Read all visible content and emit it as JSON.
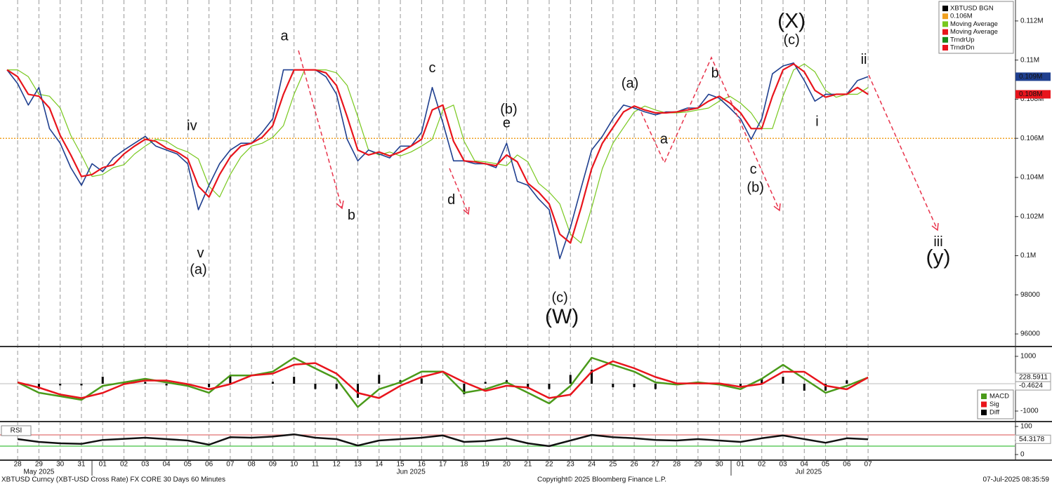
{
  "chart_data": [
    {
      "type": "line",
      "xlim": [
        -0.83,
        46.9
      ],
      "ylim": [
        95393,
        113071
      ],
      "xticks": [
        {
          "value": 0,
          "label": "28"
        },
        {
          "value": 1,
          "label": "29"
        },
        {
          "value": 2,
          "label": "30"
        },
        {
          "value": 3,
          "label": "31"
        },
        {
          "value": 4,
          "label": "01"
        },
        {
          "value": 5,
          "label": "02"
        },
        {
          "value": 6,
          "label": "03"
        },
        {
          "value": 7,
          "label": "04"
        },
        {
          "value": 8,
          "label": "05"
        },
        {
          "value": 9,
          "label": "06"
        },
        {
          "value": 10,
          "label": "07"
        },
        {
          "value": 11,
          "label": "08"
        },
        {
          "value": 12,
          "label": "09"
        },
        {
          "value": 13,
          "label": "10"
        },
        {
          "value": 14,
          "label": "11"
        },
        {
          "value": 15,
          "label": "12"
        },
        {
          "value": 16,
          "label": "13"
        },
        {
          "value": 17,
          "label": "14"
        },
        {
          "value": 18,
          "label": "15"
        },
        {
          "value": 19,
          "label": "16"
        },
        {
          "value": 20,
          "label": "17"
        },
        {
          "value": 21,
          "label": "18"
        },
        {
          "value": 22,
          "label": "19"
        },
        {
          "value": 23,
          "label": "20"
        },
        {
          "value": 24,
          "label": "21"
        },
        {
          "value": 25,
          "label": "22"
        },
        {
          "value": 26,
          "label": "23"
        },
        {
          "value": 27,
          "label": "24"
        },
        {
          "value": 28,
          "label": "25"
        },
        {
          "value": 29,
          "label": "26"
        },
        {
          "value": 30,
          "label": "27"
        },
        {
          "value": 31,
          "label": "28"
        },
        {
          "value": 32,
          "label": "29"
        },
        {
          "value": 33,
          "label": "30"
        },
        {
          "value": 34,
          "label": "01"
        },
        {
          "value": 35,
          "label": "02"
        },
        {
          "value": 36,
          "label": "03"
        },
        {
          "value": 37,
          "label": "04"
        },
        {
          "value": 38,
          "label": "05"
        },
        {
          "value": 39,
          "label": "06"
        },
        {
          "value": 40,
          "label": "07"
        }
      ],
      "month_labels": [
        {
          "value": 1,
          "label": "May 2025"
        },
        {
          "value": 18.5,
          "label": "Jun 2025"
        },
        {
          "value": 37.2,
          "label": "Jul 2025"
        }
      ],
      "yticks": [
        96000,
        98000,
        {
          "value": 100000,
          "label": "0.1M"
        },
        {
          "value": 102000,
          "label": "0.102M"
        },
        {
          "value": 104000,
          "label": "0.104M"
        },
        {
          "value": 106000,
          "label": "0.106M"
        },
        {
          "value": 108000,
          "label": "0.108M"
        },
        {
          "value": 110000,
          "label": "0.11M"
        },
        {
          "value": 112000,
          "label": "0.112M"
        }
      ],
      "x": [
        -0.5,
        0,
        0.5,
        1,
        1.5,
        2,
        2.5,
        3,
        3.5,
        4,
        4.5,
        5,
        5.5,
        6,
        6.5,
        7,
        7.5,
        8,
        8.5,
        9,
        9.5,
        10,
        10.5,
        11,
        11.5,
        12,
        12.5,
        13,
        13.5,
        14,
        14.5,
        15,
        15.5,
        16,
        16.5,
        17,
        17.5,
        18,
        18.5,
        19,
        19.5,
        20,
        20.5,
        21,
        21.5,
        22,
        22.5,
        23,
        23.5,
        24,
        24.5,
        25,
        25.5,
        26,
        26.5,
        27,
        27.5,
        28,
        28.5,
        29,
        29.5,
        30,
        30.5,
        31,
        31.5,
        32,
        32.5,
        33,
        33.5,
        34,
        34.5,
        35,
        35.5,
        36,
        36.5,
        37,
        37.5,
        38,
        38.5,
        39,
        39.5,
        40
      ],
      "series": [
        {
          "name": "XBTUSD BGN",
          "color": "#1f3f8f",
          "last_label": "0.109M",
          "values": [
            109500,
            108800,
            107700,
            108600,
            106500,
            105750,
            104500,
            103600,
            104700,
            104300,
            105000,
            105400,
            105750,
            106100,
            105600,
            105400,
            105200,
            104700,
            102350,
            103600,
            104700,
            105400,
            105750,
            105750,
            106300,
            107000,
            109500,
            109500,
            109500,
            109500,
            109150,
            108250,
            105950,
            104850,
            105400,
            105200,
            105000,
            105600,
            105600,
            106300,
            108600,
            106800,
            104850,
            104850,
            104700,
            104700,
            104500,
            105750,
            103800,
            103600,
            102900,
            102350,
            99850,
            101450,
            103450,
            105400,
            106100,
            107000,
            107700,
            107550,
            107350,
            107200,
            107350,
            107350,
            107550,
            107550,
            108250,
            108050,
            107550,
            107000,
            105950,
            107000,
            109300,
            109700,
            109850,
            108950,
            107900,
            108250,
            108250,
            108250,
            108950,
            109150
          ]
        },
        {
          "name": "Moving Average",
          "color": "#e8141c",
          "last_label": "0.108M",
          "values": [
            109500,
            109150,
            108250,
            108150,
            107550,
            106150,
            105150,
            104050,
            104150,
            104500,
            104650,
            105200,
            105600,
            105950,
            105850,
            105500,
            105300,
            104950,
            103550,
            103000,
            104150,
            105050,
            105600,
            105750,
            106050,
            106650,
            108250,
            109500,
            109500,
            109500,
            109350,
            108700,
            107100,
            105400,
            105150,
            105300,
            105100,
            105300,
            105600,
            105950,
            107450,
            107700,
            105850,
            104850,
            104800,
            104700,
            104600,
            105150,
            104800,
            103700,
            103250,
            102650,
            101100,
            100650,
            102450,
            104450,
            105750,
            106550,
            107350,
            107650,
            107450,
            107300,
            107300,
            107350,
            107450,
            107550,
            107900,
            108150,
            107800,
            107300,
            106500,
            106500,
            108150,
            109500,
            109800,
            109400,
            108450,
            108100,
            108250,
            108250,
            108600,
            108250
          ]
        },
        {
          "name": "Moving Average",
          "color": "#78c81e",
          "values": [
            109500,
            109500,
            109150,
            108250,
            108150,
            107550,
            106150,
            105150,
            104050,
            104150,
            104500,
            104650,
            105200,
            105600,
            105950,
            105850,
            105500,
            105300,
            104950,
            103550,
            103000,
            104150,
            105050,
            105600,
            105750,
            106050,
            106650,
            108250,
            109500,
            109500,
            109500,
            109350,
            108700,
            107100,
            105400,
            105150,
            105300,
            105100,
            105300,
            105600,
            105950,
            107450,
            107700,
            105850,
            104850,
            104800,
            104700,
            104600,
            105150,
            104800,
            103700,
            103250,
            102650,
            101100,
            100650,
            102450,
            104450,
            105750,
            106550,
            107350,
            107650,
            107450,
            107300,
            107300,
            107350,
            107450,
            107550,
            107900,
            108150,
            107800,
            107300,
            106500,
            106500,
            108150,
            109500,
            109800,
            109400,
            108450,
            108100,
            108250,
            108250,
            108600
          ]
        }
      ],
      "hline": {
        "name": "0.106M",
        "value": 106000,
        "color": "#f0a020"
      },
      "trend_legend": [
        {
          "name": "TrndrUp",
          "color": "#1a8a1a"
        },
        {
          "name": "TrndrDn",
          "color": "#e8141c"
        }
      ],
      "annotations": [
        {
          "text": "a",
          "color": "#2e6ca4",
          "x": 12.55,
          "y": 111200
        },
        {
          "text": "iv",
          "color": "#2e6ca4",
          "x": 8.2,
          "y": 106600
        },
        {
          "text": "v",
          "color": "#2e6ca4",
          "x": 8.6,
          "y": 100100
        },
        {
          "text": "(a)",
          "color": "#8b1a5a",
          "x": 8.5,
          "y": 99250
        },
        {
          "text": "b",
          "color": "#2e6ca4",
          "x": 15.7,
          "y": 102040
        },
        {
          "text": "c",
          "color": "#2e6ca4",
          "x": 19.5,
          "y": 109570
        },
        {
          "text": "(b)",
          "color": "#8b1a5a",
          "x": 23.1,
          "y": 107460
        },
        {
          "text": "e",
          "color": "#2e6ca4",
          "x": 23.0,
          "y": 106750
        },
        {
          "text": "d",
          "color": "#2e6ca4",
          "x": 20.4,
          "y": 102820
        },
        {
          "text": "(c)",
          "color": "#8b1a5a",
          "x": 25.5,
          "y": 97820
        },
        {
          "text": "(W)",
          "color": "#5a8a1a",
          "x": 25.6,
          "y": 96820
        },
        {
          "text": "(a)",
          "color": "#8b1a5a",
          "x": 28.8,
          "y": 108780
        },
        {
          "text": "a",
          "color": "#2e6ca4",
          "x": 30.4,
          "y": 105930
        },
        {
          "text": "b",
          "color": "#2e6ca4",
          "x": 32.8,
          "y": 109290
        },
        {
          "text": "c",
          "color": "#2e6ca4",
          "x": 34.6,
          "y": 104390
        },
        {
          "text": "(b)",
          "color": "#8b1a5a",
          "x": 34.7,
          "y": 103460
        },
        {
          "text": "(X)",
          "color": "#5a8a1a",
          "x": 36.4,
          "y": 111930
        },
        {
          "text": "(c)",
          "color": "#8b1a5a",
          "x": 36.4,
          "y": 111000
        },
        {
          "text": "i",
          "color": "#2e6ca4",
          "x": 37.6,
          "y": 106820
        },
        {
          "text": "ii",
          "color": "#2e6ca4",
          "x": 39.8,
          "y": 110000
        },
        {
          "text": "iii",
          "color": "#2e6ca4",
          "x": 43.3,
          "y": 100680
        },
        {
          "text": "(y)",
          "color": "#5a8a1a",
          "x": 43.3,
          "y": 99860
        }
      ]
    },
    {
      "type": "line",
      "xlim": [
        -0.83,
        46.9
      ],
      "ylim": [
        -1359,
        1308
      ],
      "yticks": [
        1000,
        -1000
      ],
      "x": [
        0,
        1,
        2,
        3,
        4,
        5,
        6,
        7,
        8,
        9,
        10,
        11,
        12,
        13,
        14,
        15,
        16,
        17,
        18,
        19,
        20,
        21,
        22,
        23,
        24,
        25,
        26,
        27,
        28,
        29,
        30,
        31,
        32,
        33,
        34,
        35,
        36,
        37,
        38,
        39,
        40
      ],
      "series": [
        {
          "name": "MACD",
          "color": "#4a9a1a",
          "show_last": true,
          "values": [
            50,
            -330,
            -460,
            -590,
            -80,
            50,
            180,
            50,
            -80,
            -330,
            300,
            300,
            440,
            950,
            560,
            180,
            -850,
            -200,
            50,
            440,
            440,
            -330,
            -200,
            50,
            -330,
            -720,
            -80,
            950,
            690,
            440,
            50,
            -30,
            50,
            -30,
            -200,
            180,
            690,
            180,
            -330,
            -80,
            228.5911
          ]
        },
        {
          "name": "Sig",
          "color": "#e8141c",
          "values": [
            50,
            -140,
            -395,
            -525,
            -335,
            -15,
            115,
            115,
            -15,
            -205,
            -15,
            300,
            370,
            695,
            755,
            370,
            -335,
            -525,
            -75,
            245,
            440,
            55,
            -265,
            -75,
            -140,
            -525,
            -400,
            435,
            820,
            565,
            245,
            10,
            10,
            10,
            -115,
            -10,
            435,
            435,
            -75,
            -205,
            229.0535
          ]
        },
        {
          "name": "Diff",
          "color": "#000000",
          "type": "bar",
          "show_last": true,
          "values": [
            0,
            -190,
            -65,
            -65,
            255,
            65,
            65,
            -65,
            -65,
            -125,
            315,
            0,
            70,
            255,
            -195,
            -190,
            -515,
            325,
            125,
            195,
            0,
            -385,
            65,
            125,
            -190,
            -195,
            320,
            515,
            -130,
            -125,
            -195,
            -40,
            40,
            -40,
            -85,
            190,
            255,
            -255,
            -255,
            125,
            -0.4624
          ]
        }
      ]
    },
    {
      "type": "line",
      "title": "RSI",
      "xlim": [
        -0.83,
        46.9
      ],
      "ylim": [
        -17.5,
        112.5
      ],
      "yticks": [
        100,
        50,
        0
      ],
      "levels": [
        {
          "value": 70,
          "color": "#e07070"
        },
        {
          "value": 30,
          "color": "#40c040"
        }
      ],
      "x": [
        0,
        1,
        2,
        3,
        4,
        5,
        6,
        7,
        8,
        9,
        10,
        11,
        12,
        13,
        14,
        15,
        16,
        17,
        18,
        19,
        20,
        21,
        22,
        23,
        24,
        25,
        26,
        27,
        28,
        29,
        30,
        31,
        32,
        33,
        34,
        35,
        36,
        37,
        38,
        39,
        40
      ],
      "series": [
        {
          "name": "RSI",
          "color": "#111111",
          "show_last": true,
          "values": [
            55,
            45,
            40,
            38,
            52,
            56,
            60,
            55,
            50,
            35,
            62,
            60,
            64,
            72,
            60,
            55,
            32,
            50,
            55,
            60,
            68,
            45,
            48,
            58,
            40,
            30,
            50,
            70,
            62,
            58,
            52,
            50,
            55,
            50,
            45,
            58,
            68,
            55,
            42,
            58,
            54.3178
          ]
        }
      ]
    }
  ],
  "footer": {
    "left": "XBTUSD Curncy (XBT-USD Cross Rate) FX CORE 30 Days 60 Minutes",
    "center": "Copyright© 2025 Bloomberg Finance L.P.",
    "right": "07-Jul-2025 08:35:59"
  }
}
